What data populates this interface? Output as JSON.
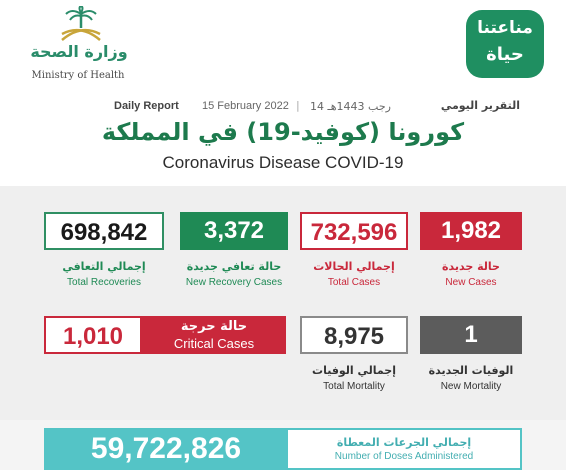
{
  "header": {
    "moh_ar": "وزارة الصحة",
    "moh_en": "Ministry of Health",
    "life_line1": "مناعتنا",
    "life_line2": "حياة",
    "daily_report": "Daily Report",
    "greg_date": "15 February 2022",
    "hijri_date": "14 رجب 1443هـ",
    "daily_report_ar": "التقرير اليومي",
    "title_ar": "كورونا (كوفيد-19) في المملكة",
    "title_en": "Coronavirus Disease COVID-19"
  },
  "stats_row1": {
    "total_recoveries": {
      "value": "698,842",
      "ar": "إجمالي التعافي",
      "en": "Total Recoveries"
    },
    "new_recovery": {
      "value": "3,372",
      "ar": "حالة تعافي جديدة",
      "en": "New Recovery Cases"
    },
    "total_cases": {
      "value": "732,596",
      "ar": "إجمالي الحالات",
      "en": "Total Cases"
    },
    "new_cases": {
      "value": "1,982",
      "ar": "حالة جديدة",
      "en": "New Cases"
    }
  },
  "stats_row2": {
    "critical": {
      "value": "1,010",
      "ar": "حالة حرجة",
      "en": "Critical Cases"
    },
    "total_mortality": {
      "value": "8,975",
      "ar": "إجمالي الوفيات",
      "en": "Total Mortality"
    },
    "new_mortality": {
      "value": "1",
      "ar": "الوفيات الجديدة",
      "en": "New Mortality"
    }
  },
  "doses": {
    "value": "59,722,826",
    "ar": "إجمالي الجرعات المعطاة",
    "en": "Number of Doses Administered"
  },
  "colors": {
    "green": "#1f8a55",
    "red": "#c9283b",
    "grey": "#5c5c5c",
    "teal": "#54c4c6"
  },
  "icons": {
    "moh_emblem": "palm-swords-emblem-icon"
  }
}
